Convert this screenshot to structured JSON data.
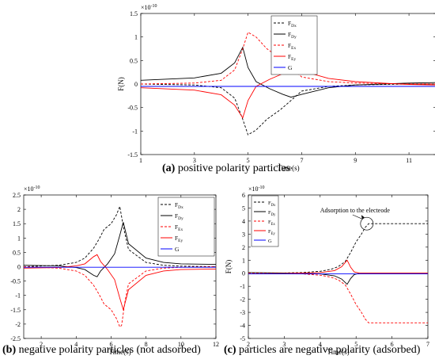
{
  "captions": [
    {
      "letter": "(a)",
      "text": " positive polarity particles"
    },
    {
      "letter": "(b)",
      "text": " negative polarity particles (not adsorbed)"
    },
    {
      "letter": "(c)",
      "text": " particles are negative polarity (adsorbed)"
    }
  ],
  "chart_data": [
    {
      "type": "line",
      "title": "",
      "xlabel": "Time(s)",
      "ylabel": "F(N)",
      "exponent_label": "×10",
      "exponent": "-10",
      "xlim": [
        1,
        12
      ],
      "ylim": [
        -1.5,
        1.5
      ],
      "xticks": [
        1,
        3,
        5,
        7,
        9,
        11
      ],
      "yticks": [
        -1.5,
        -1,
        -0.5,
        0,
        0.5,
        1,
        1.5
      ],
      "ytick_labels": [
        "-1.5",
        "-1",
        "-0.5",
        "0",
        "0.5",
        "1",
        "1.5"
      ],
      "legend_position": "top-right",
      "series": [
        {
          "name": "F",
          "sub": "Dx",
          "color": "#000000",
          "dash": "3,2",
          "x": [
            1,
            3,
            4,
            4.5,
            4.8,
            5.0,
            5.3,
            5.7,
            6.2,
            6.6,
            7,
            8,
            9,
            10,
            11,
            12
          ],
          "y": [
            0,
            -0.02,
            -0.08,
            -0.3,
            -0.75,
            -1.08,
            -0.98,
            -0.75,
            -0.55,
            -0.35,
            -0.15,
            -0.05,
            -0.02,
            -0.01,
            0,
            0
          ]
        },
        {
          "name": "F",
          "sub": "Dy",
          "color": "#000000",
          "dash": "",
          "x": [
            1,
            3,
            4,
            4.5,
            4.8,
            5.0,
            5.3,
            5.8,
            6.3,
            6.6,
            7,
            8,
            9,
            10,
            11,
            12
          ],
          "y": [
            0.08,
            0.13,
            0.23,
            0.45,
            0.78,
            0.35,
            0.05,
            -0.1,
            -0.22,
            -0.28,
            -0.22,
            -0.08,
            -0.02,
            0,
            0.02,
            0.03
          ]
        },
        {
          "name": "F",
          "sub": "Ex",
          "color": "#ff0000",
          "dash": "3,2",
          "x": [
            1,
            3,
            4,
            4.5,
            4.8,
            5.0,
            5.3,
            5.7,
            6.2,
            6.6,
            7,
            8,
            9,
            10,
            11,
            12
          ],
          "y": [
            0,
            0.02,
            0.08,
            0.3,
            0.75,
            1.1,
            1.0,
            0.75,
            0.55,
            0.35,
            0.15,
            0.05,
            0.02,
            0.01,
            0,
            0
          ]
        },
        {
          "name": "F",
          "sub": "Ey",
          "color": "#ff0000",
          "dash": "",
          "x": [
            1,
            3,
            4,
            4.5,
            4.8,
            5.0,
            5.3,
            5.8,
            6.3,
            6.6,
            7,
            8,
            9,
            10,
            11,
            12
          ],
          "y": [
            -0.08,
            -0.13,
            -0.23,
            -0.45,
            -0.72,
            -0.35,
            -0.05,
            0.1,
            0.22,
            0.33,
            0.28,
            0.12,
            0.05,
            0.02,
            -0.01,
            -0.02
          ]
        },
        {
          "name": "G",
          "sub": "",
          "color": "#0000ff",
          "dash": "",
          "x": [
            1,
            12
          ],
          "y": [
            -0.05,
            -0.05
          ]
        }
      ]
    },
    {
      "type": "line",
      "title": "",
      "xlabel": "Time(s)",
      "ylabel": "",
      "exponent_label": "×10",
      "exponent": "-10",
      "xlim": [
        1,
        12
      ],
      "ylim": [
        -2.5,
        2.5
      ],
      "xticks": [
        2,
        4,
        6,
        8,
        10,
        12
      ],
      "yticks": [
        -2.5,
        -2,
        -1.5,
        -1,
        -0.5,
        0,
        0.5,
        1,
        1.5,
        2,
        2.5
      ],
      "ytick_labels": [
        "-2.5",
        "-2",
        "-1.5",
        "-1",
        "-0.5",
        "0",
        "0.5",
        "1",
        "1.5",
        "2",
        "2.5"
      ],
      "legend_position": "top-right",
      "series": [
        {
          "name": "F",
          "sub": "Dx",
          "color": "#000000",
          "dash": "3,2",
          "x": [
            1,
            3,
            4,
            4.5,
            5,
            5.3,
            5.6,
            6.0,
            6.3,
            6.5,
            6.7,
            7,
            8,
            9,
            10,
            12
          ],
          "y": [
            0,
            0.05,
            0.15,
            0.3,
            0.65,
            0.95,
            1.3,
            1.5,
            1.8,
            2.1,
            1.4,
            0.6,
            0.15,
            0.05,
            0.02,
            0
          ]
        },
        {
          "name": "F",
          "sub": "Dy",
          "color": "#000000",
          "dash": "",
          "x": [
            1,
            3,
            4,
            4.5,
            5,
            5.2,
            5.4,
            5.8,
            6.2,
            6.5,
            6.7,
            7,
            8,
            9,
            10,
            12
          ],
          "y": [
            0.05,
            0.03,
            -0.03,
            -0.1,
            -0.3,
            -0.35,
            -0.15,
            0.1,
            0.45,
            1.1,
            1.55,
            0.8,
            0.3,
            0.15,
            0.1,
            0.08
          ]
        },
        {
          "name": "F",
          "sub": "Ex",
          "color": "#ff0000",
          "dash": "3,2",
          "x": [
            1,
            3,
            4,
            4.5,
            5,
            5.3,
            5.6,
            6.0,
            6.3,
            6.5,
            6.6,
            6.8,
            7,
            8,
            9,
            10,
            12
          ],
          "y": [
            0,
            -0.05,
            -0.15,
            -0.3,
            -0.65,
            -0.95,
            -1.3,
            -1.5,
            -1.8,
            -2.1,
            -2.05,
            -1.2,
            -0.6,
            -0.15,
            -0.05,
            -0.02,
            0
          ]
        },
        {
          "name": "F",
          "sub": "Ey",
          "color": "#ff0000",
          "dash": "",
          "x": [
            1,
            3,
            4,
            4.5,
            5,
            5.2,
            5.4,
            5.8,
            6.2,
            6.5,
            6.7,
            7,
            8,
            9,
            10,
            12
          ],
          "y": [
            -0.05,
            -0.03,
            0.03,
            0.1,
            0.35,
            0.42,
            0.18,
            -0.1,
            -0.45,
            -1.1,
            -1.5,
            -0.8,
            -0.3,
            -0.15,
            -0.1,
            -0.08
          ]
        },
        {
          "name": "G",
          "sub": "",
          "color": "#0000ff",
          "dash": "",
          "x": [
            1,
            12
          ],
          "y": [
            -0.02,
            -0.02
          ]
        }
      ]
    },
    {
      "type": "line",
      "title": "",
      "xlabel": "Time(s)",
      "ylabel": "F(N)",
      "exponent_label": "×10",
      "exponent": "-10",
      "xlim": [
        2,
        7
      ],
      "ylim": [
        -5,
        6
      ],
      "xticks": [
        2,
        3,
        4,
        5,
        6,
        7
      ],
      "yticks": [
        -5,
        -4,
        -3,
        -2,
        -1,
        0,
        1,
        2,
        3,
        4,
        5,
        6
      ],
      "ytick_labels": [
        "-5",
        "-4",
        "-3",
        "-2",
        "-1",
        "0",
        "1",
        "2",
        "3",
        "4",
        "5",
        "6"
      ],
      "legend_position": "top-left",
      "annotation": "Adsorption to the electeode",
      "series": [
        {
          "name": "F",
          "sub": "Dx",
          "color": "#000000",
          "dash": "3,2",
          "x": [
            2,
            3,
            3.5,
            4,
            4.3,
            4.5,
            4.7,
            4.85,
            5.0,
            5.15,
            5.25,
            5.35,
            7
          ],
          "y": [
            0,
            0.02,
            0.05,
            0.15,
            0.3,
            0.5,
            0.9,
            1.6,
            2.4,
            3.0,
            3.5,
            3.8,
            3.8
          ]
        },
        {
          "name": "F",
          "sub": "Dy",
          "color": "#000000",
          "dash": "",
          "x": [
            2,
            3,
            4,
            4.4,
            4.6,
            4.75,
            4.85,
            4.95,
            5.1,
            7
          ],
          "y": [
            0.05,
            0.02,
            -0.05,
            -0.2,
            -0.45,
            -0.85,
            -0.4,
            -0.1,
            0,
            0
          ]
        },
        {
          "name": "F",
          "sub": "Ex",
          "color": "#ff0000",
          "dash": "3,2",
          "x": [
            2,
            3,
            3.5,
            4,
            4.3,
            4.5,
            4.7,
            4.85,
            5.0,
            5.15,
            5.25,
            5.35,
            7
          ],
          "y": [
            0,
            -0.02,
            -0.05,
            -0.15,
            -0.3,
            -0.5,
            -0.9,
            -1.6,
            -2.4,
            -3.0,
            -3.5,
            -3.8,
            -3.8
          ]
        },
        {
          "name": "F",
          "sub": "Ey",
          "color": "#ff0000",
          "dash": "",
          "x": [
            2,
            3,
            4,
            4.4,
            4.6,
            4.75,
            4.85,
            4.95,
            5.1,
            7
          ],
          "y": [
            -0.05,
            -0.02,
            0.05,
            0.2,
            0.5,
            1.0,
            0.45,
            0.1,
            0,
            0
          ]
        },
        {
          "name": "G",
          "sub": "",
          "color": "#0000ff",
          "dash": "",
          "x": [
            2,
            7
          ],
          "y": [
            -0.05,
            -0.05
          ]
        }
      ]
    }
  ]
}
